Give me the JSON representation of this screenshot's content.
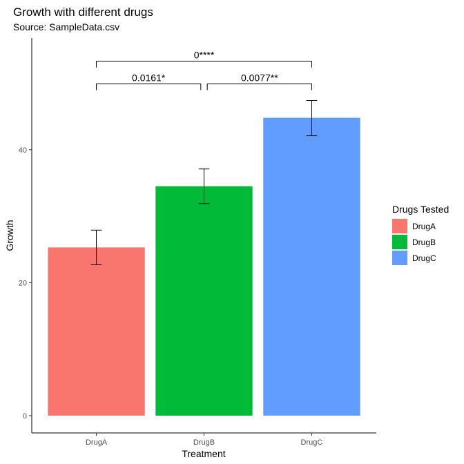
{
  "chart_data": {
    "type": "bar",
    "title": "Growth with different drugs",
    "subtitle": "Source: SampleData.csv",
    "xlabel": "Treatment",
    "ylabel": "Growth",
    "categories": [
      "DrugA",
      "DrugB",
      "DrugC"
    ],
    "values": [
      25.3,
      34.5,
      44.8
    ],
    "error_low": [
      22.7,
      31.9,
      42.1
    ],
    "error_high": [
      27.9,
      37.1,
      47.4
    ],
    "colors": [
      "#F8766D",
      "#00BA38",
      "#619CFF"
    ],
    "ylim": [
      -2.6,
      56.8
    ],
    "yticks": [
      0,
      20,
      40
    ],
    "grid": false,
    "legend": {
      "title": "Drugs Tested",
      "position": "right",
      "entries": [
        "DrugA",
        "DrugB",
        "DrugC"
      ]
    },
    "comparisons": [
      {
        "from": "DrugA",
        "to": "DrugC",
        "label": "0****",
        "y": 53.3
      },
      {
        "from": "DrugA",
        "to": "DrugB",
        "label": "0.0161*",
        "y": 49.9
      },
      {
        "from": "DrugB",
        "to": "DrugC",
        "label": "0.0077**",
        "y": 49.9
      }
    ]
  }
}
